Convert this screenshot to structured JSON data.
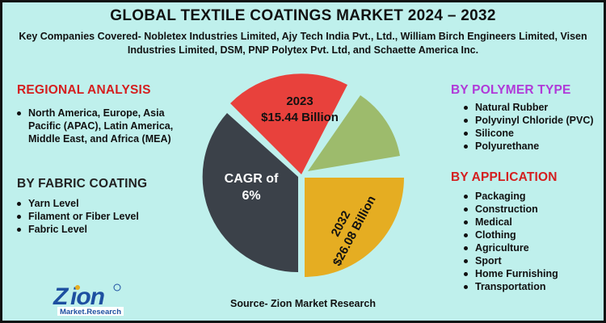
{
  "title": "GLOBAL TEXTILE COATINGS MARKET 2024 – 2032",
  "subtitle": "Key Companies Covered- Nobletex Industries Limited, Ajy Tech India Pvt., Ltd., William Birch Engineers Limited, Visen Industries Limited, DSM, PNP Polytex Pvt. Ltd, and Schaette America Inc.",
  "regional": {
    "heading": "REGIONAL ANALYSIS",
    "items": [
      "North America, Europe, Asia Pacific (APAC), Latin America, Middle East, and Africa (MEA)"
    ]
  },
  "fabric": {
    "heading": "BY FABRIC COATING",
    "items": [
      "Yarn Level",
      "Filament or Fiber Level",
      "Fabric Level"
    ]
  },
  "polymer": {
    "heading": "BY POLYMER TYPE",
    "items": [
      "Natural Rubber",
      "Polyvinyl Chloride (PVC)",
      "Silicone",
      "Polyurethane"
    ]
  },
  "application": {
    "heading": "BY APPLICATION",
    "items": [
      "Packaging",
      "Construction",
      "Medical",
      "Clothing",
      "Agriculture",
      "Sport",
      "Home Furnishing",
      "Transportation"
    ]
  },
  "pie": {
    "cagr_line1": "CAGR of",
    "cagr_line2": "6%",
    "y2023_line1": "2023",
    "y2023_line2": "$15.44 Billion",
    "y2032_line1": "2032",
    "y2032_line2": "$26.08 Billion",
    "colors": {
      "red": "#e8413c",
      "green": "#9dbb6c",
      "gold": "#e5ad22",
      "dark": "#3b4149"
    }
  },
  "logo": {
    "word": "Zion",
    "sub": "Market.Research"
  },
  "source": "Source- Zion Market Research"
}
